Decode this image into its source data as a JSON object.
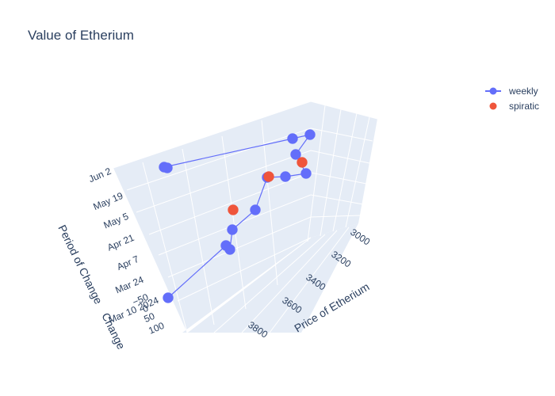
{
  "chart_data": {
    "type": "scatter3d",
    "title": "Value of Etherium",
    "axes": {
      "x": {
        "title": "Price of Etherium",
        "ticks": [
          "3000",
          "3200",
          "3400",
          "3600",
          "3800"
        ]
      },
      "y": {
        "title": "Period of Change",
        "ticks": [
          "Mar 10 2024",
          "Mar 24",
          "Apr 7",
          "Apr 21",
          "May 5",
          "May 19",
          "Jun 2"
        ]
      },
      "z": {
        "title": "Change",
        "ticks": [
          "100",
          "50",
          "0",
          "−50"
        ]
      }
    },
    "legend": {
      "position": "top-right",
      "entries": [
        "weekly",
        "spiratic"
      ]
    },
    "series": [
      {
        "name": "weekly",
        "mode": "lines+markers",
        "color": "#636efa",
        "points": [
          {
            "date": "Mar 10 2024",
            "price": 3840,
            "change": 60
          },
          {
            "date": "Mar 17",
            "price": 3700,
            "change": 40
          },
          {
            "date": "Mar 24",
            "price": 3690,
            "change": 35
          },
          {
            "date": "Apr 1",
            "price": 3660,
            "change": 20
          },
          {
            "date": "Apr 14",
            "price": 3500,
            "change": 5
          },
          {
            "date": "Apr 28",
            "price": 3230,
            "change": -10
          },
          {
            "date": "May 1",
            "price": 3320,
            "change": 0
          },
          {
            "date": "May 5",
            "price": 3420,
            "change": 10
          },
          {
            "date": "May 10",
            "price": 3200,
            "change": -5
          },
          {
            "date": "May 14",
            "price": 3020,
            "change": -20
          },
          {
            "date": "May 19",
            "price": 3030,
            "change": -45
          },
          {
            "date": "Jun 2",
            "price": 3250,
            "change": 10
          },
          {
            "date": "Jun 3",
            "price": 3270,
            "change": 12
          }
        ]
      },
      {
        "name": "spiratic",
        "mode": "markers",
        "color": "#ef553b",
        "points": [
          {
            "date": "Apr 7",
            "price": 3560,
            "change": -30
          },
          {
            "date": "Apr 25",
            "price": 3350,
            "change": 40
          },
          {
            "date": "May 12",
            "price": 3150,
            "change": -10
          }
        ]
      }
    ]
  }
}
